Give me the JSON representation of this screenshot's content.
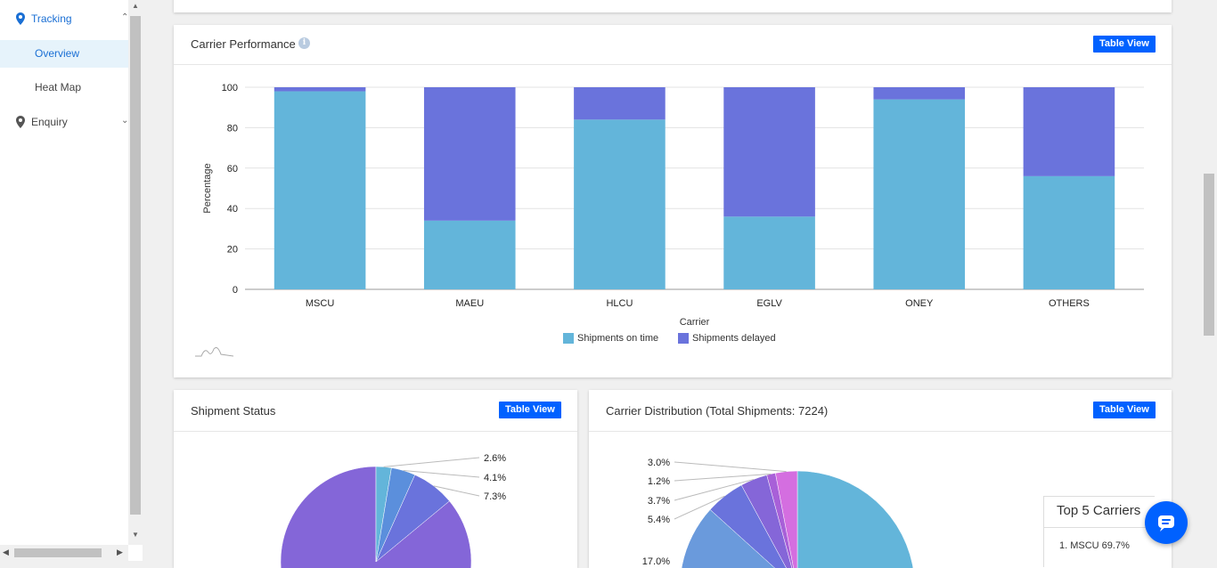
{
  "sidebar": {
    "items": [
      {
        "label": "Tracking",
        "icon": "map-pin-icon",
        "expanded": true
      },
      {
        "label": "Overview",
        "active": true
      },
      {
        "label": "Heat Map"
      },
      {
        "label": "Enquiry",
        "icon": "map-pin-icon"
      }
    ]
  },
  "colors": {
    "accent": "#0061ff",
    "on_time": "#63b5da",
    "delayed": "#6a73dc",
    "active_nav_bg": "#e6f3fb",
    "active_nav_text": "#1a6fd4"
  },
  "carrier_performance": {
    "title": "Carrier Performance",
    "table_view_label": "Table View",
    "info_icon": "info-icon",
    "chart_data": {
      "type": "bar",
      "stacked": true,
      "categories": [
        "MSCU",
        "MAEU",
        "HLCU",
        "EGLV",
        "ONEY",
        "OTHERS"
      ],
      "series": [
        {
          "name": "Shipments on time",
          "values": [
            98,
            34,
            84,
            36,
            94,
            56
          ]
        },
        {
          "name": "Shipments delayed",
          "values": [
            2,
            66,
            16,
            64,
            6,
            44
          ]
        }
      ],
      "xlabel": "Carrier",
      "ylabel": "Percentage",
      "ylim": [
        0,
        100
      ],
      "yticks": [
        "0",
        "20",
        "40",
        "60",
        "80",
        "100"
      ],
      "grid": true,
      "legend_position": "bottom"
    }
  },
  "shipment_status": {
    "title": "Shipment Status",
    "table_view_label": "Table View",
    "chart_data": {
      "type": "pie",
      "labels": [
        "2.6%",
        "4.1%",
        "7.3%"
      ],
      "values": [
        2.6,
        4.1,
        7.3
      ],
      "colors": [
        "#63b5da",
        "#5b8fdc",
        "#6a73dc"
      ],
      "remaining_color": "#8466d8"
    }
  },
  "carrier_distribution": {
    "title": "Carrier Distribution (Total Shipments: 7224)",
    "table_view_label": "Table View",
    "chart_data": {
      "type": "pie",
      "labels": [
        "3.0%",
        "1.2%",
        "3.7%",
        "5.4%",
        "17.0%"
      ],
      "values": [
        3.0,
        1.2,
        3.7,
        5.4,
        17.0
      ],
      "colors": [
        "#d46ee0",
        "#a860d8",
        "#8566d8",
        "#6a73dc",
        "#6a9adc"
      ],
      "main_color": "#63b5da"
    },
    "top5": {
      "title": "Top 5 Carriers",
      "items": [
        "1.  MSCU 69.7%"
      ]
    }
  },
  "chat": {
    "icon": "chat-icon"
  }
}
